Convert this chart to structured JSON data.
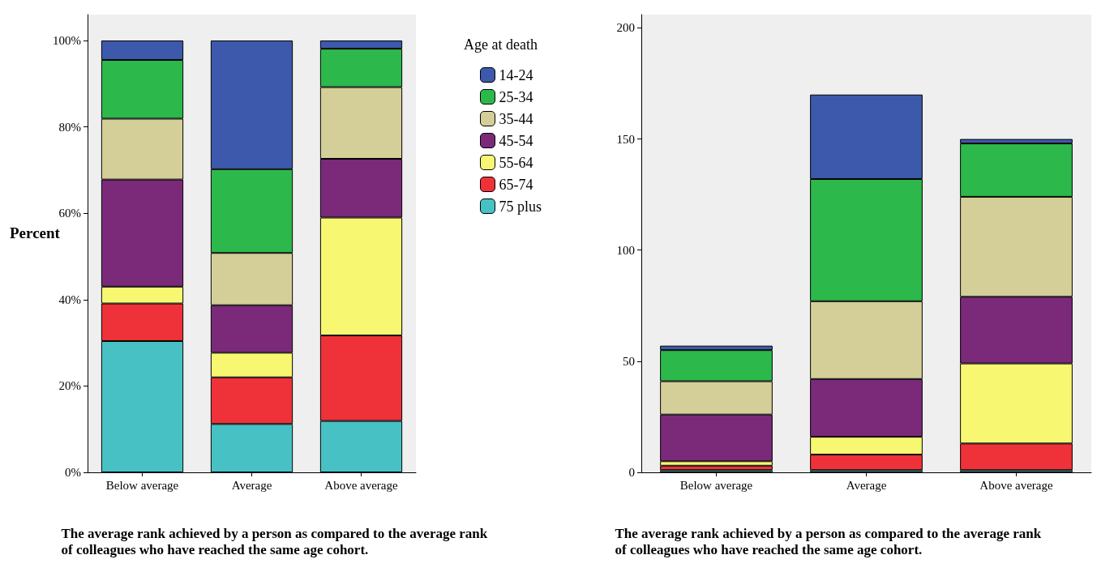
{
  "chart_data": [
    {
      "type": "bar",
      "stacked": true,
      "xlabel": "The average rank achieved by a person as compared to the average rank of colleagues who have reached the same age cohort.",
      "ylabel": "Percent",
      "legend_title": "Age at death",
      "legend": "right",
      "categories": [
        "Below average",
        "Average",
        "Above average"
      ],
      "ylim": [
        0,
        106
      ],
      "yticks": [
        {
          "value": 0,
          "label": "0%"
        },
        {
          "value": 20,
          "label": "20%"
        },
        {
          "value": 40,
          "label": "40%"
        },
        {
          "value": 60,
          "label": "60%"
        },
        {
          "value": 80,
          "label": "80%"
        },
        {
          "value": 100,
          "label": "100%"
        }
      ],
      "series": [
        {
          "name": "75 plus",
          "color": "#48c1c5",
          "values": [
            30.4,
            11.2,
            11.9
          ]
        },
        {
          "name": "65-74",
          "color": "#ef3239",
          "values": [
            8.7,
            10.8,
            19.8
          ]
        },
        {
          "name": "55-64",
          "color": "#f8f772",
          "values": [
            3.9,
            5.7,
            27.3
          ]
        },
        {
          "name": "45-54",
          "color": "#7b2a7a",
          "values": [
            24.8,
            11,
            13.6
          ]
        },
        {
          "name": "35-44",
          "color": "#d4cf98",
          "values": [
            14.1,
            12.1,
            16.6
          ]
        },
        {
          "name": "25-34",
          "color": "#2db84b",
          "values": [
            13.6,
            19.4,
            8.9
          ]
        },
        {
          "name": "14-24",
          "color": "#3d59ab",
          "values": [
            4.5,
            29.8,
            1.9
          ]
        }
      ]
    },
    {
      "type": "bar",
      "stacked": true,
      "xlabel": "The average rank achieved by a person as compared to the average rank of colleagues who have reached the same age cohort.",
      "categories": [
        "Below average",
        "Average",
        "Above average"
      ],
      "ylim": [
        0,
        206
      ],
      "yticks": [
        0,
        50,
        100,
        150,
        200
      ],
      "series": [
        {
          "color": "#48c1c5",
          "values": [
            1,
            1,
            1
          ]
        },
        {
          "color": "#ef3239",
          "values": [
            2,
            7,
            12
          ]
        },
        {
          "color": "#f8f772",
          "values": [
            2,
            8,
            36
          ]
        },
        {
          "color": "#7b2a7a",
          "values": [
            21,
            26,
            30
          ]
        },
        {
          "color": "#d4cf98",
          "values": [
            15,
            35,
            45
          ]
        },
        {
          "color": "#2db84b",
          "values": [
            14,
            55,
            24
          ]
        },
        {
          "color": "#3d59ab",
          "values": [
            2,
            38,
            2
          ]
        }
      ]
    }
  ]
}
